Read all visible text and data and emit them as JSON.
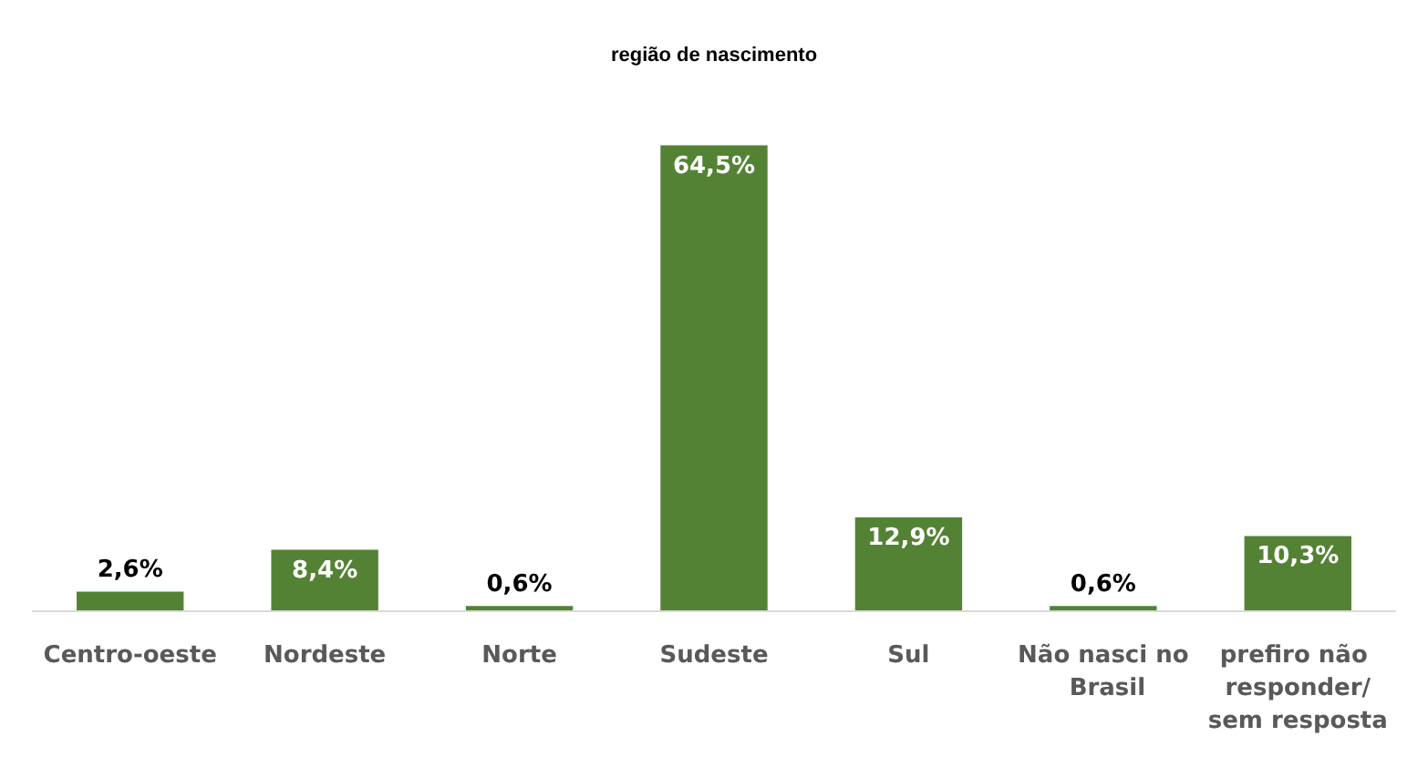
{
  "chart_data": {
    "type": "bar",
    "title": "região de nascimento",
    "categories": [
      "Centro-oeste",
      "Nordeste",
      "Norte",
      "Sudeste",
      "Sul",
      "Não nasci no Brasil",
      "prefiro não responder/sem resposta"
    ],
    "values": [
      2.6,
      8.4,
      0.6,
      64.5,
      12.9,
      0.6,
      10.3
    ],
    "value_labels": [
      "2,6%",
      "8,4%",
      "0,6%",
      "64,5%",
      "12,9%",
      "0,6%",
      "10,3%"
    ],
    "color": "#548235"
  }
}
